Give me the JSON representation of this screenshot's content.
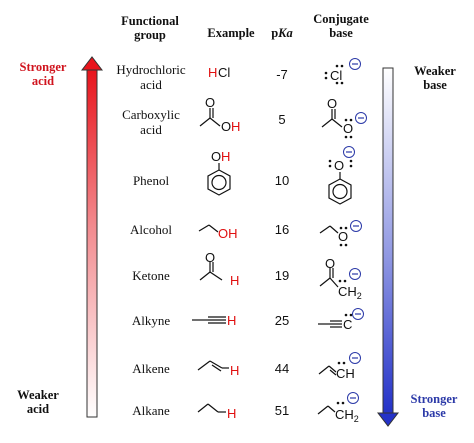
{
  "headers": {
    "group_line1": "Functional",
    "group_line2": "group",
    "example": "Example",
    "pka_p": "p",
    "pka_ka": "Ka",
    "conj_line1": "Conjugate",
    "conj_line2": "base"
  },
  "left_labels": {
    "top_line1": "Stronger",
    "top_line2": "acid",
    "bottom_line1": "Weaker",
    "bottom_line2": "acid"
  },
  "right_labels": {
    "top_line1": "Weaker",
    "top_line2": "base",
    "bottom_line1": "Stronger",
    "bottom_line2": "base"
  },
  "rows": [
    {
      "group_line1": "Hydrochloric",
      "group_line2": "acid",
      "pka": "-7"
    },
    {
      "group_line1": "Carboxylic",
      "group_line2": "acid",
      "pka": "5"
    },
    {
      "group_line1": "Phenol",
      "group_line2": "",
      "pka": "10"
    },
    {
      "group_line1": "Alcohol",
      "group_line2": "",
      "pka": "16"
    },
    {
      "group_line1": "Ketone",
      "group_line2": "",
      "pka": "19"
    },
    {
      "group_line1": "Alkyne",
      "group_line2": "",
      "pka": "25"
    },
    {
      "group_line1": "Alkene",
      "group_line2": "",
      "pka": "44"
    },
    {
      "group_line1": "Alkane",
      "group_line2": "",
      "pka": "51"
    }
  ],
  "atoms": {
    "h": "H",
    "cl": "Cl",
    "o": "O",
    "oh": "OH",
    "ch": "CH",
    "c": "C",
    "ch2": "CH",
    "sub2": "2",
    "minus": "−"
  },
  "colors": {
    "acid_arrow": "#e8141c",
    "base_arrow": "#2432c8",
    "acidic_h": "#e01010",
    "charge": "#2c3aa8"
  }
}
